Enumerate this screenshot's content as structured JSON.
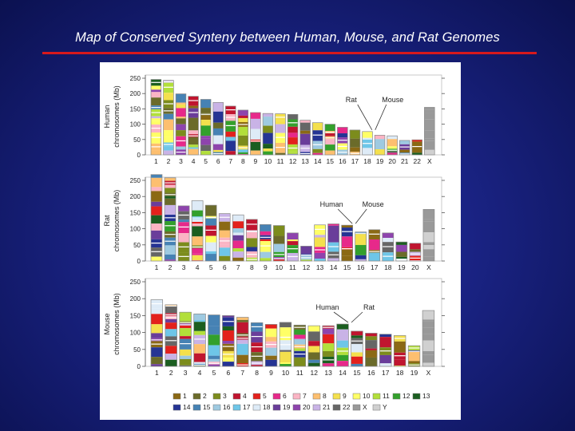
{
  "slide": {
    "title": "Map of Conserved Synteny between Human, Mouse, and Rat Genomes"
  },
  "colors": {
    "background": "#1a2384",
    "rule": "#d7191c",
    "bar_stroke": "#888888",
    "chrom": {
      "1": "#8b6914",
      "2": "#6b6b2a",
      "3": "#7c8c1c",
      "4": "#c0152f",
      "5": "#e3211c",
      "6": "#e7298a",
      "7": "#fbb4c4",
      "8": "#fdbf6f",
      "9": "#f4e04d",
      "10": "#ffff66",
      "11": "#b2df3a",
      "12": "#33a02c",
      "13": "#1b5e20",
      "14": "#253494",
      "15": "#4682b4",
      "16": "#9ecae1",
      "17": "#6ec6e8",
      "18": "#deebf7",
      "19": "#6a3d9a",
      "20": "#8e44ad",
      "21": "#c9b3e6",
      "22": "#666666",
      "X": "#999999",
      "Y": "#d0d0d0"
    }
  },
  "panels": [
    {
      "species": "Human",
      "ylabel_top": "Human",
      "ylabel_bottom": "chromosomes (Mb)",
      "yticks": [
        0,
        50,
        100,
        150,
        200,
        250
      ],
      "chromosomes": [
        "1",
        "2",
        "3",
        "4",
        "5",
        "6",
        "7",
        "8",
        "9",
        "10",
        "11",
        "12",
        "13",
        "14",
        "15",
        "16",
        "17",
        "18",
        "19",
        "20",
        "21",
        "22",
        "X"
      ],
      "lengths": [
        246,
        243,
        199,
        191,
        181,
        171,
        159,
        146,
        138,
        135,
        134,
        132,
        113,
        105,
        100,
        90,
        81,
        76,
        64,
        62,
        47,
        49,
        155
      ],
      "annotation_left": "Rat",
      "annotation_right": "Mouse"
    },
    {
      "species": "Rat",
      "ylabel_top": "Rat",
      "ylabel_bottom": "chromosomes (Mb)",
      "yticks": [
        0,
        50,
        100,
        150,
        200,
        250
      ],
      "chromosomes": [
        "1",
        "2",
        "3",
        "4",
        "5",
        "6",
        "7",
        "8",
        "9",
        "10",
        "11",
        "12",
        "13",
        "14",
        "15",
        "16",
        "17",
        "18",
        "19",
        "20",
        "X"
      ],
      "lengths": [
        268,
        258,
        171,
        187,
        173,
        147,
        143,
        129,
        113,
        110,
        87,
        46,
        112,
        115,
        111,
        90,
        97,
        87,
        59,
        55,
        160
      ],
      "annotation_left": "Human",
      "annotation_right": "Mouse"
    },
    {
      "species": "Mouse",
      "ylabel_top": "Mouse",
      "ylabel_bottom": "chromosomes (Mb)",
      "yticks": [
        0,
        50,
        100,
        150,
        200,
        250
      ],
      "chromosomes": [
        "1",
        "2",
        "3",
        "4",
        "5",
        "6",
        "7",
        "8",
        "9",
        "10",
        "11",
        "12",
        "13",
        "14",
        "15",
        "16",
        "17",
        "18",
        "19",
        "X"
      ],
      "lengths": [
        197,
        182,
        160,
        155,
        152,
        150,
        145,
        129,
        124,
        130,
        122,
        120,
        120,
        125,
        104,
        98,
        95,
        91,
        61,
        165
      ],
      "annotation_left": "Human",
      "annotation_right": "Rat"
    }
  ],
  "legend": {
    "row1": [
      "1",
      "2",
      "3",
      "4",
      "5",
      "6",
      "7",
      "8",
      "9",
      "10",
      "11",
      "12",
      "13"
    ],
    "row2": [
      "14",
      "15",
      "16",
      "17",
      "18",
      "19",
      "20",
      "21",
      "22",
      "X",
      "Y"
    ]
  }
}
